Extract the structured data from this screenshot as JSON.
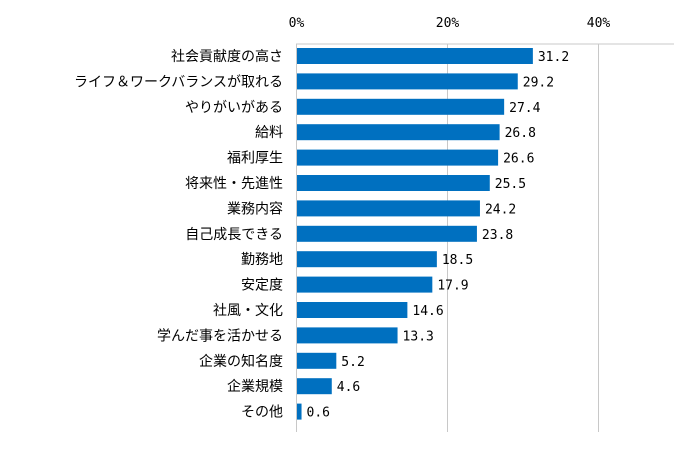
{
  "chart_data": {
    "type": "bar",
    "orientation": "horizontal",
    "categories": [
      "社会貢献度の高さ",
      "ライフ＆ワークバランスが取れる",
      "やりがいがある",
      "給料",
      "福利厚生",
      "将来性・先進性",
      "業務内容",
      "自己成長できる",
      "勤務地",
      "安定度",
      "社風・文化",
      "学んだ事を活かせる",
      "企業の知名度",
      "企業規模",
      "その他"
    ],
    "values": [
      31.2,
      29.2,
      27.4,
      26.8,
      26.6,
      25.5,
      24.2,
      23.8,
      18.5,
      17.9,
      14.6,
      13.3,
      5.2,
      4.6,
      0.6
    ],
    "value_labels": [
      "31.2",
      "29.2",
      "27.4",
      "26.8",
      "26.6",
      "25.5",
      "24.2",
      "23.8",
      "18.5",
      "17.9",
      "14.6",
      "13.3",
      "5.2",
      "4.6",
      "0.6"
    ],
    "xlim": [
      0,
      50
    ],
    "ticks": [
      0,
      20,
      40
    ],
    "tick_labels": [
      "0%",
      "20%",
      "40%"
    ],
    "axis_position": "top",
    "grid": true,
    "bar_color": "#0070C0",
    "grid_color": "#c8c8c8"
  }
}
